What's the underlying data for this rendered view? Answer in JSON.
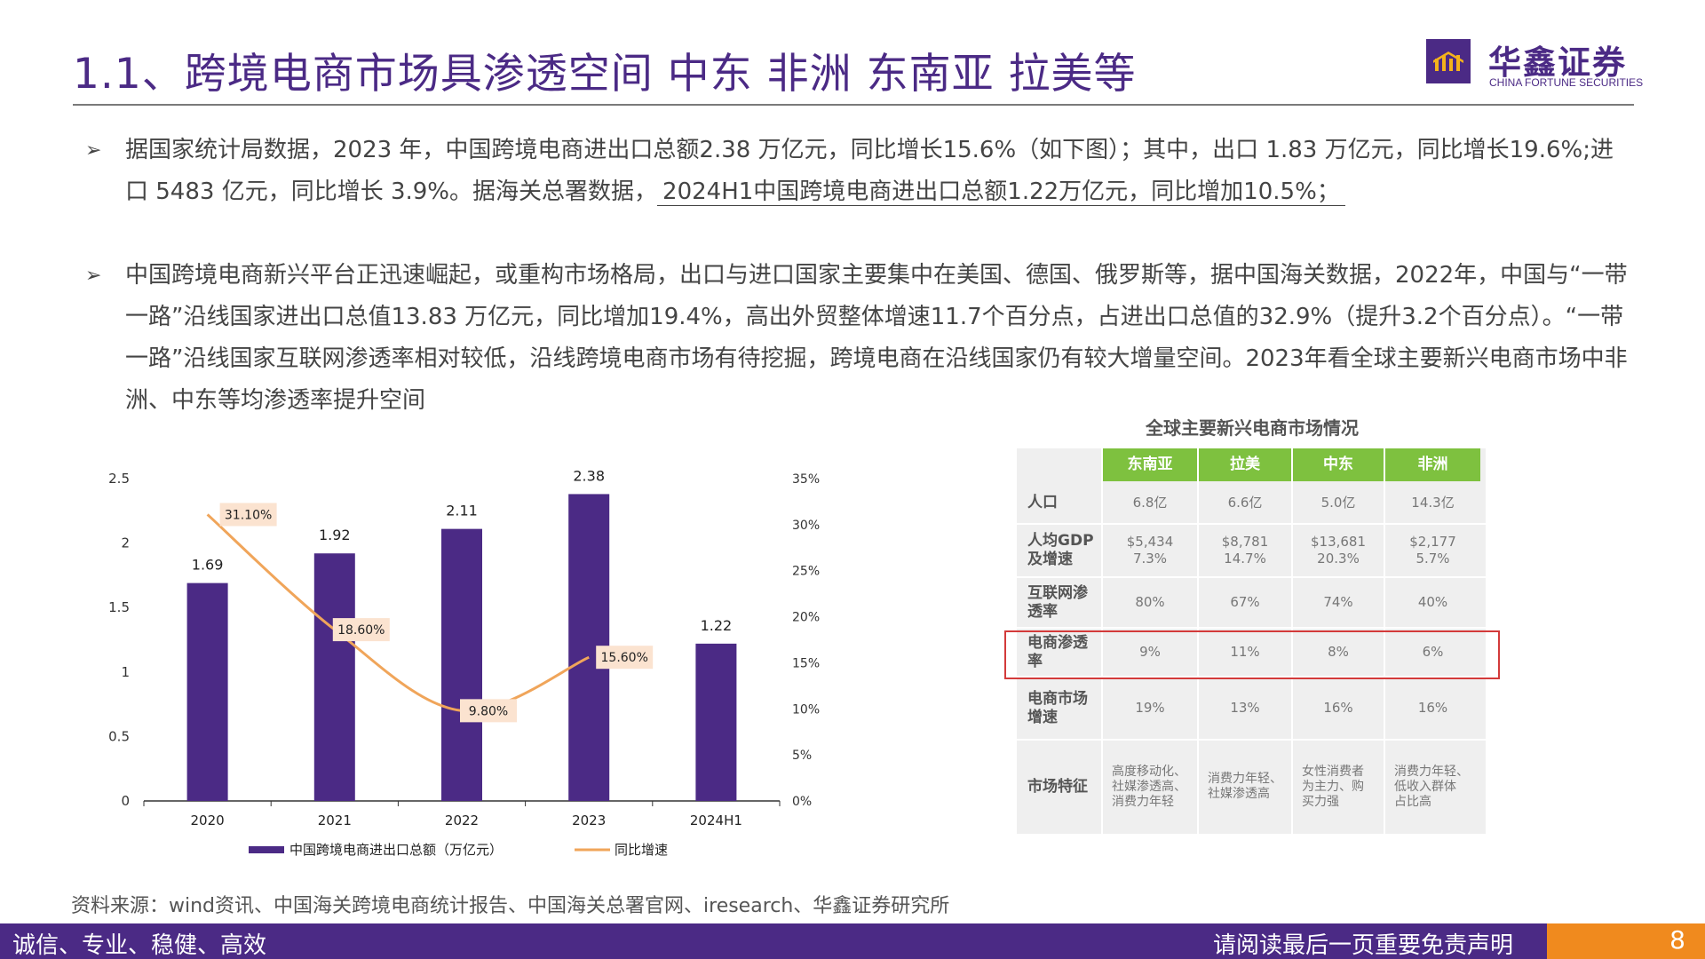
{
  "header": {
    "title": "1.1、跨境电商市场具渗透空间 中东 非洲 东南亚 拉美等",
    "logo_cn": "华鑫证券",
    "logo_en": "CHINA FORTUNE SECURITIES"
  },
  "bullets": [
    {
      "marker": "➢",
      "text": "据国家统计局数据，2023 年，中国跨境电商进出口总额2.38 万亿元，同比增长15.6%（如下图）；其中，出口 1.83 万亿元，同比增长19.6%;进口 5483 亿元，同比增长 3.9%。据海关总署数据，",
      "underlined": "2024H1中国跨境电商进出口总额1.22万亿元，同比增加10.5%；"
    },
    {
      "marker": "➢",
      "text": "中国跨境电商新兴平台正迅速崛起，或重构市场格局，出口与进口国家主要集中在美国、德国、俄罗斯等，据中国海关数据，2022年，中国与“一带一路”沿线国家进出口总值13.83 万亿元，同比增加19.4%，高出外贸整体增速11.7个百分点，占进出口总值的32.9%（提升3.2个百分点）。“一带一路”沿线国家互联网渗透率相对较低，沿线跨境电商市场有待挖掘，跨境电商在沿线国家仍有较大增量空间。2023年看全球主要新兴电商市场中非洲、中东等均渗透率提升空间"
    }
  ],
  "chart_data": {
    "type": "bar",
    "categories": [
      "2020",
      "2021",
      "2022",
      "2023",
      "2024H1"
    ],
    "series": [
      {
        "name": "中国跨境电商进出口总额（万亿元）",
        "type": "bar",
        "axis": "left",
        "values": [
          1.69,
          1.92,
          2.11,
          2.38,
          1.22
        ],
        "labels": [
          "1.69",
          "1.92",
          "2.11",
          "2.38",
          "1.22"
        ],
        "color": "#4b2a85"
      },
      {
        "name": "同比增速",
        "type": "line",
        "axis": "right",
        "values": [
          31.1,
          18.6,
          9.8,
          15.6,
          null
        ],
        "labels": [
          "31.10%",
          "18.60%",
          "9.80%",
          "15.60%",
          ""
        ],
        "color": "#f0a55a"
      }
    ],
    "y_left": {
      "min": 0,
      "max": 2.5,
      "ticks": [
        "0",
        "0.5",
        "1",
        "1.5",
        "2",
        "2.5"
      ]
    },
    "y_right": {
      "min": 0,
      "max": 35,
      "ticks": [
        "0%",
        "5%",
        "10%",
        "15%",
        "20%",
        "25%",
        "30%",
        "35%"
      ]
    },
    "legend_position": "bottom",
    "grid": false
  },
  "market_table": {
    "title": "全球主要新兴电商市场情况",
    "columns": [
      "东南亚",
      "拉美",
      "中东",
      "非洲"
    ],
    "rows": [
      {
        "label": "人口",
        "cells": [
          "6.8亿",
          "6.6亿",
          "5.0亿",
          "14.3亿"
        ]
      },
      {
        "label": "人均GDP\n及增速",
        "cells": [
          "$5,434\n7.3%",
          "$8,781\n14.7%",
          "$13,681\n20.3%",
          "$2,177\n5.7%"
        ]
      },
      {
        "label": "互联网渗\n透率",
        "cells": [
          "80%",
          "67%",
          "74%",
          "40%"
        ]
      },
      {
        "label": "电商渗透\n率",
        "cells": [
          "9%",
          "11%",
          "8%",
          "6%"
        ]
      },
      {
        "label": "电商市场\n增速",
        "cells": [
          "19%",
          "13%",
          "16%",
          "16%"
        ]
      },
      {
        "label": "市场特征",
        "cells": [
          "高度移动化、\n社媒渗透高、\n消费力年轻",
          "消费力年轻、\n社媒渗透高",
          "女性消费者\n为主力、购\n买力强",
          "消费力年轻、\n低收入群体\n占比高"
        ]
      }
    ],
    "highlight_color": "#d33a3a",
    "header_color": "#7ec13f"
  },
  "footer": {
    "source": "资料来源：wind资讯、中国海关跨境电商统计报告、中国海关总署官网、iresearch、华鑫证券研究所",
    "slogan": "诚信、专业、稳健、高效",
    "disclaimer": "请阅读最后一页重要免责声明",
    "page": "8"
  }
}
